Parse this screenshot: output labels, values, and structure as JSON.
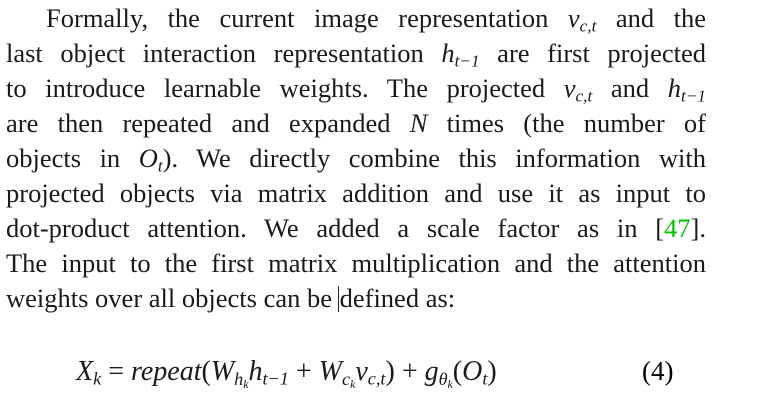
{
  "paragraph": {
    "l1": {
      "a": "Formally, the current image representation ",
      "v": "v",
      "vsub": "c,t",
      "b": " and the"
    },
    "l2": {
      "a": "last object interaction representation ",
      "h": "h",
      "hsub": "t−1",
      "b": " are first projected"
    },
    "l3": {
      "a": "to introduce learnable weights. The projected ",
      "v": "v",
      "vsub": "c,t",
      "b": " and ",
      "h": "h",
      "hsub": "t−1"
    },
    "l4": {
      "a": "are then repeated and expanded ",
      "n": "N",
      "b": " times (the number of"
    },
    "l5": {
      "a": "objects in ",
      "o": "O",
      "osub": "t",
      "b": "). We directly combine this information with"
    },
    "l6": {
      "a": "projected objects via matrix addition and use it as input to"
    },
    "l7": {
      "a": "dot-product attention. We added a scale factor as in ",
      "lb": "[",
      "cite": "47",
      "rb": "]."
    },
    "l8": {
      "a": "The input to the first matrix multiplication and the attention"
    },
    "l9": {
      "a": "weights over all objects can be ",
      "b": "defined as:"
    }
  },
  "equation": {
    "lhs": "X",
    "lhs_sub": "k",
    "eq": " = ",
    "fn": "repeat",
    "p1": "(",
    "w1": "W",
    "w1_sub": "h",
    "w1_subsub": "k",
    "h": "h",
    "h_sub": "t−1",
    "plus1": " + ",
    "w2": "W",
    "w2_sub": "c",
    "w2_subsub": "k",
    "v": "v",
    "v_sub": "c,t",
    "p2": ")",
    "plus2": " + ",
    "g": "g",
    "g_sub": "θ",
    "g_subsub": "k",
    "p3": "(",
    "o": "O",
    "o_sub": "t",
    "p4": ")",
    "number": "(4)"
  },
  "colors": {
    "citation": "#00c000",
    "text": "#1a1a1a"
  }
}
